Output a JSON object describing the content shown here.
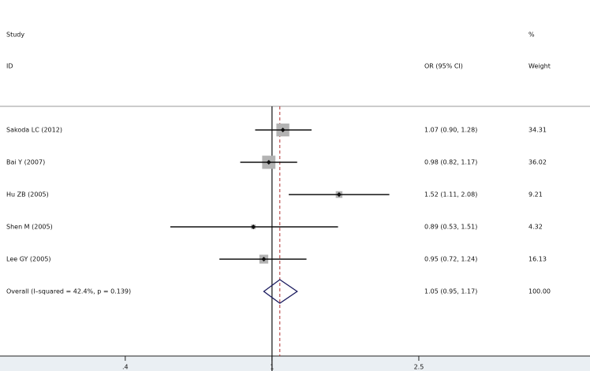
{
  "chart_data": {
    "type": "forest",
    "log_x": true,
    "xlim": [
      0.183,
      7.28
    ],
    "xticks": [
      {
        "value": 0.4,
        "label": ".4"
      },
      1,
      2.5
    ],
    "null_value": 1,
    "headers": {
      "study": "Study",
      "id": "ID",
      "ci": "OR (95% CI)",
      "pct": "%",
      "weight": "Weight"
    },
    "box_color": "#b3b3b3",
    "diamond_color": "#1a1a5e",
    "overall_line_color": "#b03030",
    "studies": [
      {
        "name": "Sakoda LC (2012)",
        "or": 1.07,
        "lower": 0.9,
        "upper": 1.28,
        "ci_label": "1.07 (0.90, 1.28)",
        "weight": 34.31
      },
      {
        "name": "Bai Y (2007)",
        "or": 0.98,
        "lower": 0.82,
        "upper": 1.17,
        "ci_label": "0.98 (0.82, 1.17)",
        "weight": 36.02
      },
      {
        "name": "Hu ZB (2005)",
        "or": 1.52,
        "lower": 1.11,
        "upper": 2.08,
        "ci_label": "1.52 (1.11, 2.08)",
        "weight": 9.21
      },
      {
        "name": "Shen M (2005)",
        "or": 0.89,
        "lower": 0.53,
        "upper": 1.51,
        "ci_label": "0.89 (0.53, 1.51)",
        "weight": 4.32
      },
      {
        "name": "Lee GY (2005)",
        "or": 0.95,
        "lower": 0.72,
        "upper": 1.24,
        "ci_label": "0.95 (0.72, 1.24)",
        "weight": 16.13
      }
    ],
    "overall": {
      "name": "Overall  (I–squared = 42.4%, p = 0.139)",
      "or": 1.05,
      "lower": 0.95,
      "upper": 1.17,
      "ci_label": "1.05 (0.95, 1.17)",
      "weight": 100,
      "weight_label": "100.00"
    }
  }
}
